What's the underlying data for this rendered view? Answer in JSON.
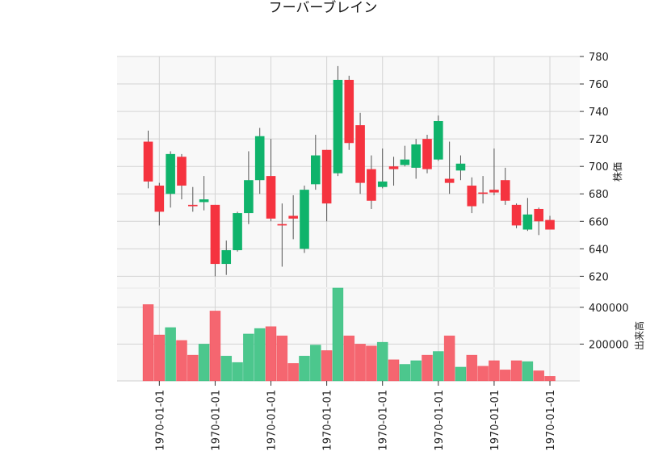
{
  "chart_data": {
    "type": "candlestick",
    "title": "フーバーブレイン",
    "price_ylabel": "株価",
    "volume_ylabel": "出来高",
    "price_ylim": [
      612,
      780
    ],
    "price_yticks": [
      620,
      640,
      660,
      680,
      700,
      720,
      740,
      760,
      780
    ],
    "volume_ylim": [
      0,
      500000
    ],
    "volume_yticks": [
      200000,
      400000
    ],
    "volume_tick_labels": [
      "200000",
      "400000"
    ],
    "x_tick_indices": [
      1,
      6,
      11,
      16,
      21,
      26,
      31,
      36
    ],
    "x_tick_labels": [
      "1970-01-01",
      "1970-01-01",
      "1970-01-01",
      "1970-01-01",
      "1970-01-01",
      "1970-01-01",
      "1970-01-01",
      "1970-01-01"
    ],
    "grid": true,
    "colors": {
      "up": "#0fb36b",
      "down": "#f5333f",
      "up_volume": "#4cc78d",
      "down_volume": "#f56670",
      "background": "#f8f8f8"
    },
    "candles": [
      {
        "open": 718,
        "high": 726,
        "low": 684,
        "close": 689,
        "volume": 415000
      },
      {
        "open": 686,
        "high": 688,
        "low": 657,
        "close": 667,
        "volume": 250000
      },
      {
        "open": 680,
        "high": 711,
        "low": 670,
        "close": 709,
        "volume": 290000
      },
      {
        "open": 707,
        "high": 709,
        "low": 676,
        "close": 686,
        "volume": 220000
      },
      {
        "open": 672,
        "high": 685,
        "low": 667,
        "close": 671,
        "volume": 140000
      },
      {
        "open": 674,
        "high": 693,
        "low": 668,
        "close": 676,
        "volume": 200000
      },
      {
        "open": 672,
        "high": 672,
        "low": 620,
        "close": 629,
        "volume": 380000
      },
      {
        "open": 629,
        "high": 646,
        "low": 621,
        "close": 639,
        "volume": 135000
      },
      {
        "open": 639,
        "high": 667,
        "low": 638,
        "close": 666,
        "volume": 100000
      },
      {
        "open": 666,
        "high": 711,
        "low": 658,
        "close": 690,
        "volume": 255000
      },
      {
        "open": 690,
        "high": 728,
        "low": 680,
        "close": 722,
        "volume": 285000
      },
      {
        "open": 693,
        "high": 720,
        "low": 660,
        "close": 662,
        "volume": 295000
      },
      {
        "open": 658,
        "high": 673,
        "low": 627,
        "close": 657,
        "volume": 245000
      },
      {
        "open": 664,
        "high": 679,
        "low": 647,
        "close": 662,
        "volume": 95000
      },
      {
        "open": 640,
        "high": 686,
        "low": 637,
        "close": 683,
        "volume": 135000
      },
      {
        "open": 687,
        "high": 723,
        "low": 683,
        "close": 708,
        "volume": 195000
      },
      {
        "open": 712,
        "high": 712,
        "low": 660,
        "close": 673,
        "volume": 165000
      },
      {
        "open": 695,
        "high": 773,
        "low": 693,
        "close": 763,
        "volume": 505000
      },
      {
        "open": 763,
        "high": 766,
        "low": 712,
        "close": 717,
        "volume": 245000
      },
      {
        "open": 730,
        "high": 739,
        "low": 680,
        "close": 688,
        "volume": 200000
      },
      {
        "open": 698,
        "high": 708,
        "low": 669,
        "close": 675,
        "volume": 190000
      },
      {
        "open": 685,
        "high": 713,
        "low": 684,
        "close": 689,
        "volume": 210000
      },
      {
        "open": 700,
        "high": 707,
        "low": 686,
        "close": 698,
        "volume": 115000
      },
      {
        "open": 701,
        "high": 715,
        "low": 700,
        "close": 705,
        "volume": 90000
      },
      {
        "open": 699,
        "high": 720,
        "low": 691,
        "close": 716,
        "volume": 110000
      },
      {
        "open": 720,
        "high": 723,
        "low": 695,
        "close": 698,
        "volume": 140000
      },
      {
        "open": 705,
        "high": 737,
        "low": 704,
        "close": 733,
        "volume": 160000
      },
      {
        "open": 691,
        "high": 718,
        "low": 680,
        "close": 688,
        "volume": 245000
      },
      {
        "open": 697,
        "high": 708,
        "low": 690,
        "close": 702,
        "volume": 75000
      },
      {
        "open": 686,
        "high": 692,
        "low": 666,
        "close": 671,
        "volume": 140000
      },
      {
        "open": 681,
        "high": 693,
        "low": 673,
        "close": 680,
        "volume": 80000
      },
      {
        "open": 683,
        "high": 713,
        "low": 679,
        "close": 681,
        "volume": 110000
      },
      {
        "open": 690,
        "high": 699,
        "low": 672,
        "close": 675,
        "volume": 60000
      },
      {
        "open": 672,
        "high": 673,
        "low": 655,
        "close": 657,
        "volume": 110000
      },
      {
        "open": 654,
        "high": 677,
        "low": 653,
        "close": 665,
        "volume": 105000
      },
      {
        "open": 669,
        "high": 670,
        "low": 650,
        "close": 660,
        "volume": 55000
      },
      {
        "open": 661,
        "high": 664,
        "low": 654,
        "close": 654,
        "volume": 25000
      }
    ]
  }
}
